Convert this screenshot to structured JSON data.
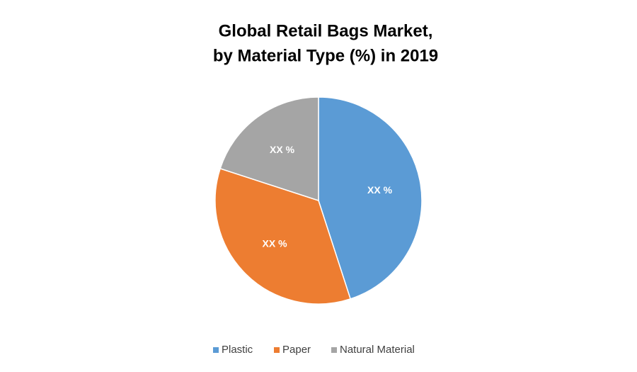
{
  "chart_data": {
    "type": "pie",
    "title": [
      "Global Retail Bags Market,",
      "by Material Type (%) in 2019"
    ],
    "categories": [
      "Plastic",
      "Paper",
      "Natural Material"
    ],
    "values": [
      45,
      35,
      20
    ],
    "value_labels": [
      "XX %",
      "XX %",
      "XX %"
    ],
    "colors": [
      "#5b9bd5",
      "#ed7d31",
      "#a5a5a5"
    ],
    "legend": "bottom"
  }
}
